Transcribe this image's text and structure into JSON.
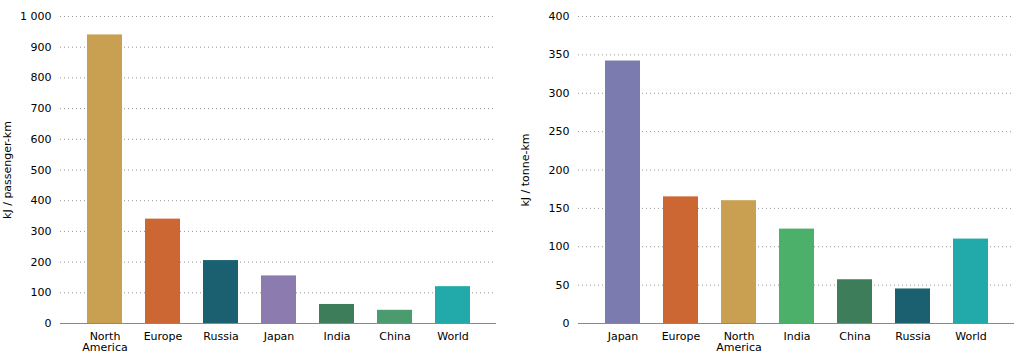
{
  "chart_data": [
    {
      "type": "bar",
      "categories": [
        "North\nAmerica",
        "Europe",
        "Russia",
        "Japan",
        "India",
        "China",
        "World"
      ],
      "values": [
        940,
        340,
        205,
        155,
        62,
        43,
        120
      ],
      "colors": [
        "#C9A052",
        "#CC6633",
        "#1B6070",
        "#8B7BAF",
        "#3D7D5A",
        "#4A9B6E",
        "#22AAAA"
      ],
      "ylabel": "kJ / passenger-km",
      "ylim": [
        0,
        1000
      ],
      "yticks": [
        0,
        100,
        200,
        300,
        400,
        500,
        600,
        700,
        800,
        900,
        {
          "value": 1000,
          "label": "1 000"
        }
      ],
      "grid": true
    },
    {
      "type": "bar",
      "categories": [
        "Japan",
        "Europe",
        "North\nAmerica",
        "India",
        "China",
        "Russia",
        "World"
      ],
      "values": [
        342,
        165,
        160,
        123,
        57,
        45,
        110
      ],
      "colors": [
        "#7B7BAF",
        "#CC6633",
        "#C9A052",
        "#4CAF6A",
        "#3D7D5A",
        "#1B6070",
        "#22AAAA"
      ],
      "ylabel": "kJ / tonne-km",
      "ylim": [
        0,
        400
      ],
      "yticks": [
        0,
        50,
        100,
        150,
        200,
        250,
        300,
        350,
        400
      ],
      "grid": true
    }
  ]
}
